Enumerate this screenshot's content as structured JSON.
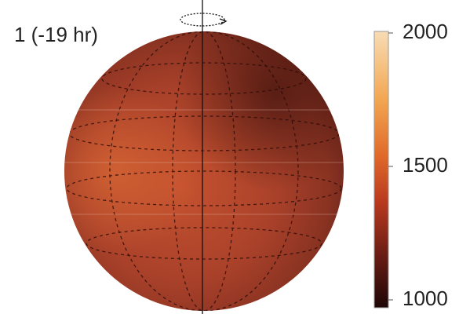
{
  "panel_label": "1 (-19 hr)",
  "colorbar": {
    "lim": [
      1000,
      2000
    ],
    "ticks": [
      1000,
      1500,
      2000
    ]
  }
}
